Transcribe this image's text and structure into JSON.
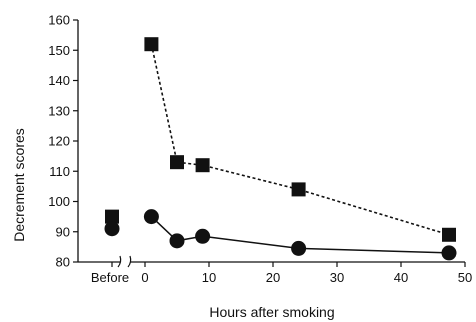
{
  "chart_data": {
    "type": "line",
    "title": "",
    "xlabel": "Hours after smoking",
    "ylabel": "Decrement scores",
    "ylim": [
      80,
      160
    ],
    "xlim": [
      0,
      50
    ],
    "yticks": [
      80,
      90,
      100,
      110,
      120,
      130,
      140,
      150,
      160
    ],
    "xticks": [
      0,
      10,
      20,
      30,
      40,
      50
    ],
    "baseline_label": "Before",
    "x_axis_break": true,
    "legend": "none",
    "grid": false,
    "series": [
      {
        "marker": "square",
        "line_style": "dashed",
        "before": 95,
        "points": [
          [
            1,
            152
          ],
          [
            5,
            113
          ],
          [
            9,
            112
          ],
          [
            24,
            104
          ],
          [
            47.5,
            89
          ]
        ]
      },
      {
        "marker": "circle",
        "line_style": "solid",
        "before": 91,
        "points": [
          [
            1,
            95
          ],
          [
            5,
            87
          ],
          [
            9,
            88.5
          ],
          [
            24,
            84.5
          ],
          [
            47.5,
            83
          ]
        ]
      }
    ]
  }
}
